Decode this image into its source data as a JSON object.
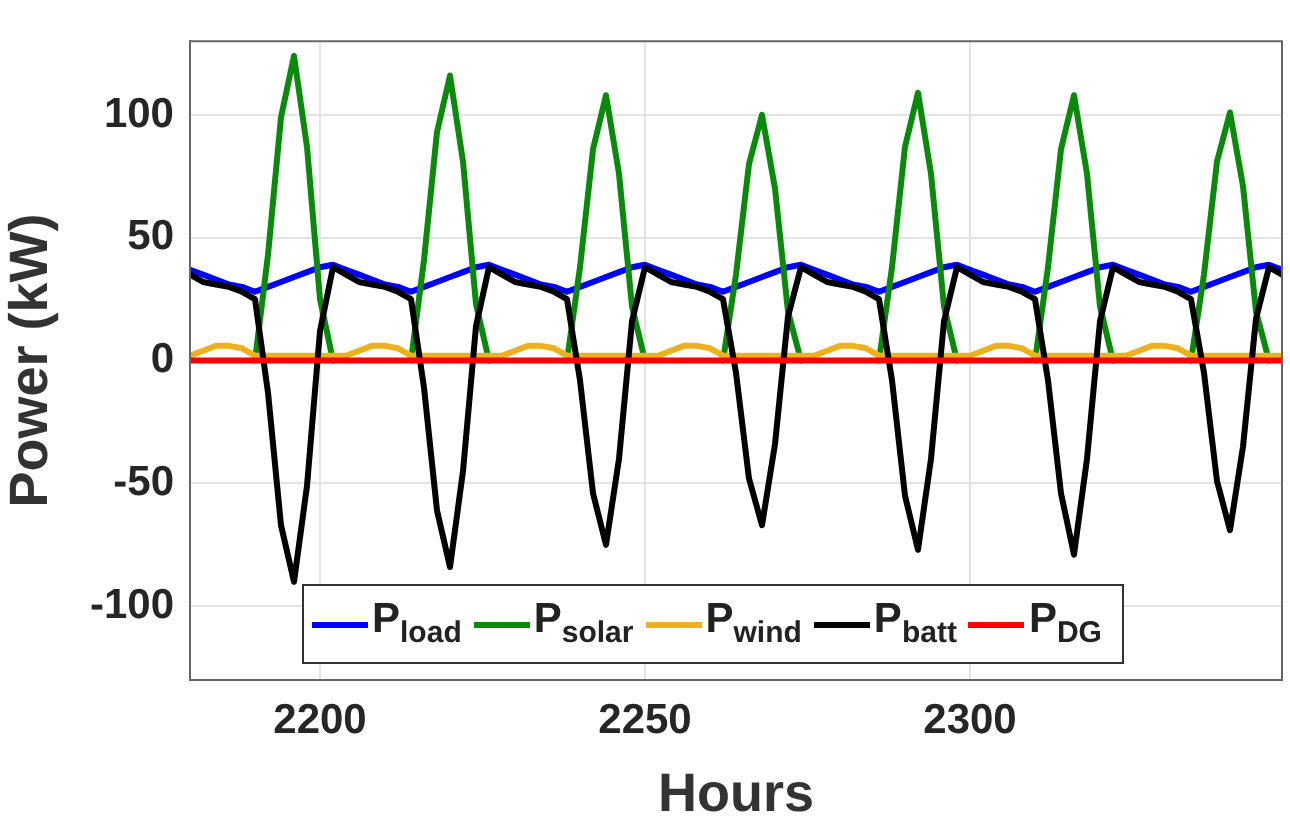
{
  "chart_data": {
    "type": "line",
    "xlabel": "Hours",
    "ylabel": "Power (kW)",
    "x": [
      2180,
      2182,
      2184,
      2186,
      2188,
      2190,
      2192,
      2194,
      2196,
      2198,
      2200,
      2202,
      2204,
      2206,
      2208,
      2210,
      2212,
      2214,
      2216,
      2218,
      2220,
      2222,
      2224,
      2226,
      2228,
      2230,
      2232,
      2234,
      2236,
      2238,
      2240,
      2242,
      2244,
      2246,
      2248,
      2250,
      2252,
      2254,
      2256,
      2258,
      2260,
      2262,
      2264,
      2266,
      2268,
      2270,
      2272,
      2274,
      2276,
      2278,
      2280,
      2282,
      2284,
      2286,
      2288,
      2290,
      2292,
      2294,
      2296,
      2298,
      2300,
      2302,
      2304,
      2306,
      2308,
      2310,
      2312,
      2314,
      2316,
      2318,
      2320,
      2322,
      2324,
      2326,
      2328,
      2330,
      2332,
      2334,
      2336,
      2338,
      2340,
      2342,
      2344,
      2346,
      2348
    ],
    "series": [
      {
        "name": "P$_{load}$",
        "color": "#0000ff",
        "values": [
          37,
          35,
          33,
          31,
          30,
          28,
          30,
          32,
          34,
          36,
          38,
          39,
          37,
          35,
          33,
          31,
          30,
          28,
          30,
          32,
          34,
          36,
          38,
          39,
          37,
          35,
          33,
          31,
          30,
          28,
          30,
          32,
          34,
          36,
          38,
          39,
          37,
          35,
          33,
          31,
          30,
          28,
          30,
          32,
          34,
          36,
          38,
          39,
          37,
          35,
          33,
          31,
          30,
          28,
          30,
          32,
          34,
          36,
          38,
          39,
          37,
          35,
          33,
          31,
          30,
          28,
          30,
          32,
          34,
          36,
          38,
          39,
          37,
          35,
          33,
          31,
          30,
          28,
          30,
          32,
          34,
          36,
          38,
          39,
          37
        ]
      },
      {
        "name": "P$_{solar}$",
        "color": "#0a8a0a",
        "values": [
          null,
          null,
          null,
          null,
          null,
          0,
          43,
          99,
          124,
          87,
          25,
          0,
          null,
          null,
          null,
          null,
          null,
          0,
          41,
          93,
          116,
          81,
          23,
          0,
          null,
          null,
          null,
          null,
          null,
          0,
          38,
          86,
          108,
          76,
          22,
          0,
          null,
          null,
          null,
          null,
          null,
          0,
          35,
          80,
          100,
          70,
          20,
          0,
          null,
          null,
          null,
          null,
          null,
          0,
          38,
          87,
          109,
          76,
          22,
          0,
          null,
          null,
          null,
          null,
          null,
          0,
          38,
          86,
          108,
          76,
          22,
          0,
          null,
          null,
          null,
          null,
          null,
          0,
          35,
          81,
          101,
          71,
          20,
          0,
          null
        ]
      },
      {
        "name": "P$_{wind}$",
        "color": "#edb120",
        "values": [
          2,
          4,
          6,
          6,
          5,
          2,
          2,
          2,
          2,
          2,
          2,
          2,
          2,
          4,
          6,
          6,
          5,
          2,
          2,
          2,
          2,
          2,
          2,
          2,
          2,
          4,
          6,
          6,
          5,
          2,
          2,
          2,
          2,
          2,
          2,
          2,
          2,
          4,
          6,
          6,
          5,
          2,
          2,
          2,
          2,
          2,
          2,
          2,
          2,
          4,
          6,
          6,
          5,
          2,
          2,
          2,
          2,
          2,
          2,
          2,
          2,
          4,
          6,
          6,
          5,
          2,
          2,
          2,
          2,
          2,
          2,
          2,
          2,
          4,
          6,
          6,
          5,
          2,
          2,
          2,
          2,
          2,
          2,
          2,
          2
        ]
      },
      {
        "name": "P$_{batt}$",
        "color": "#000000",
        "values": [
          35,
          32,
          31,
          30,
          28,
          25,
          -13,
          -67,
          -90,
          -51,
          12,
          38,
          35,
          32,
          31,
          30,
          28,
          25,
          -11,
          -61,
          -84,
          -45,
          14,
          38,
          35,
          32,
          31,
          30,
          28,
          25,
          -8,
          -54,
          -75,
          -40,
          16,
          38,
          35,
          32,
          31,
          30,
          28,
          25,
          -5,
          -48,
          -67,
          -34,
          18,
          38,
          35,
          32,
          31,
          30,
          28,
          25,
          -8,
          -55,
          -77,
          -40,
          16,
          38,
          35,
          32,
          31,
          30,
          28,
          25,
          -8,
          -54,
          -79,
          -40,
          16,
          38,
          35,
          32,
          31,
          30,
          28,
          25,
          -5,
          -49,
          -69,
          -35,
          17,
          38,
          35
        ]
      },
      {
        "name": "P$_{DG}$",
        "color": "#ff0000",
        "values": [
          0,
          0,
          0,
          0,
          0,
          0,
          0,
          0,
          0,
          0,
          0,
          0,
          0,
          0,
          0,
          0,
          0,
          0,
          0,
          0,
          0,
          0,
          0,
          0,
          0,
          0,
          0,
          0,
          0,
          0,
          0,
          0,
          0,
          0,
          0,
          0,
          0,
          0,
          0,
          0,
          0,
          0,
          0,
          0,
          0,
          0,
          0,
          0,
          0,
          0,
          0,
          0,
          0,
          0,
          0,
          0,
          0,
          0,
          0,
          0,
          0,
          0,
          0,
          0,
          0,
          0,
          0,
          0,
          0,
          0,
          0,
          0,
          0,
          0,
          0,
          0,
          0,
          0,
          0,
          0,
          0,
          0,
          0,
          0,
          0
        ]
      }
    ],
    "xlim": [
      2180,
      2348
    ],
    "xticks": [
      2200,
      2250,
      2300
    ],
    "ylim": [
      -130,
      130
    ],
    "yticks": [
      -100,
      -50,
      0,
      50,
      100
    ],
    "grid": true,
    "legend": "bottom",
    "marker": "none",
    "line_style": "solid"
  }
}
